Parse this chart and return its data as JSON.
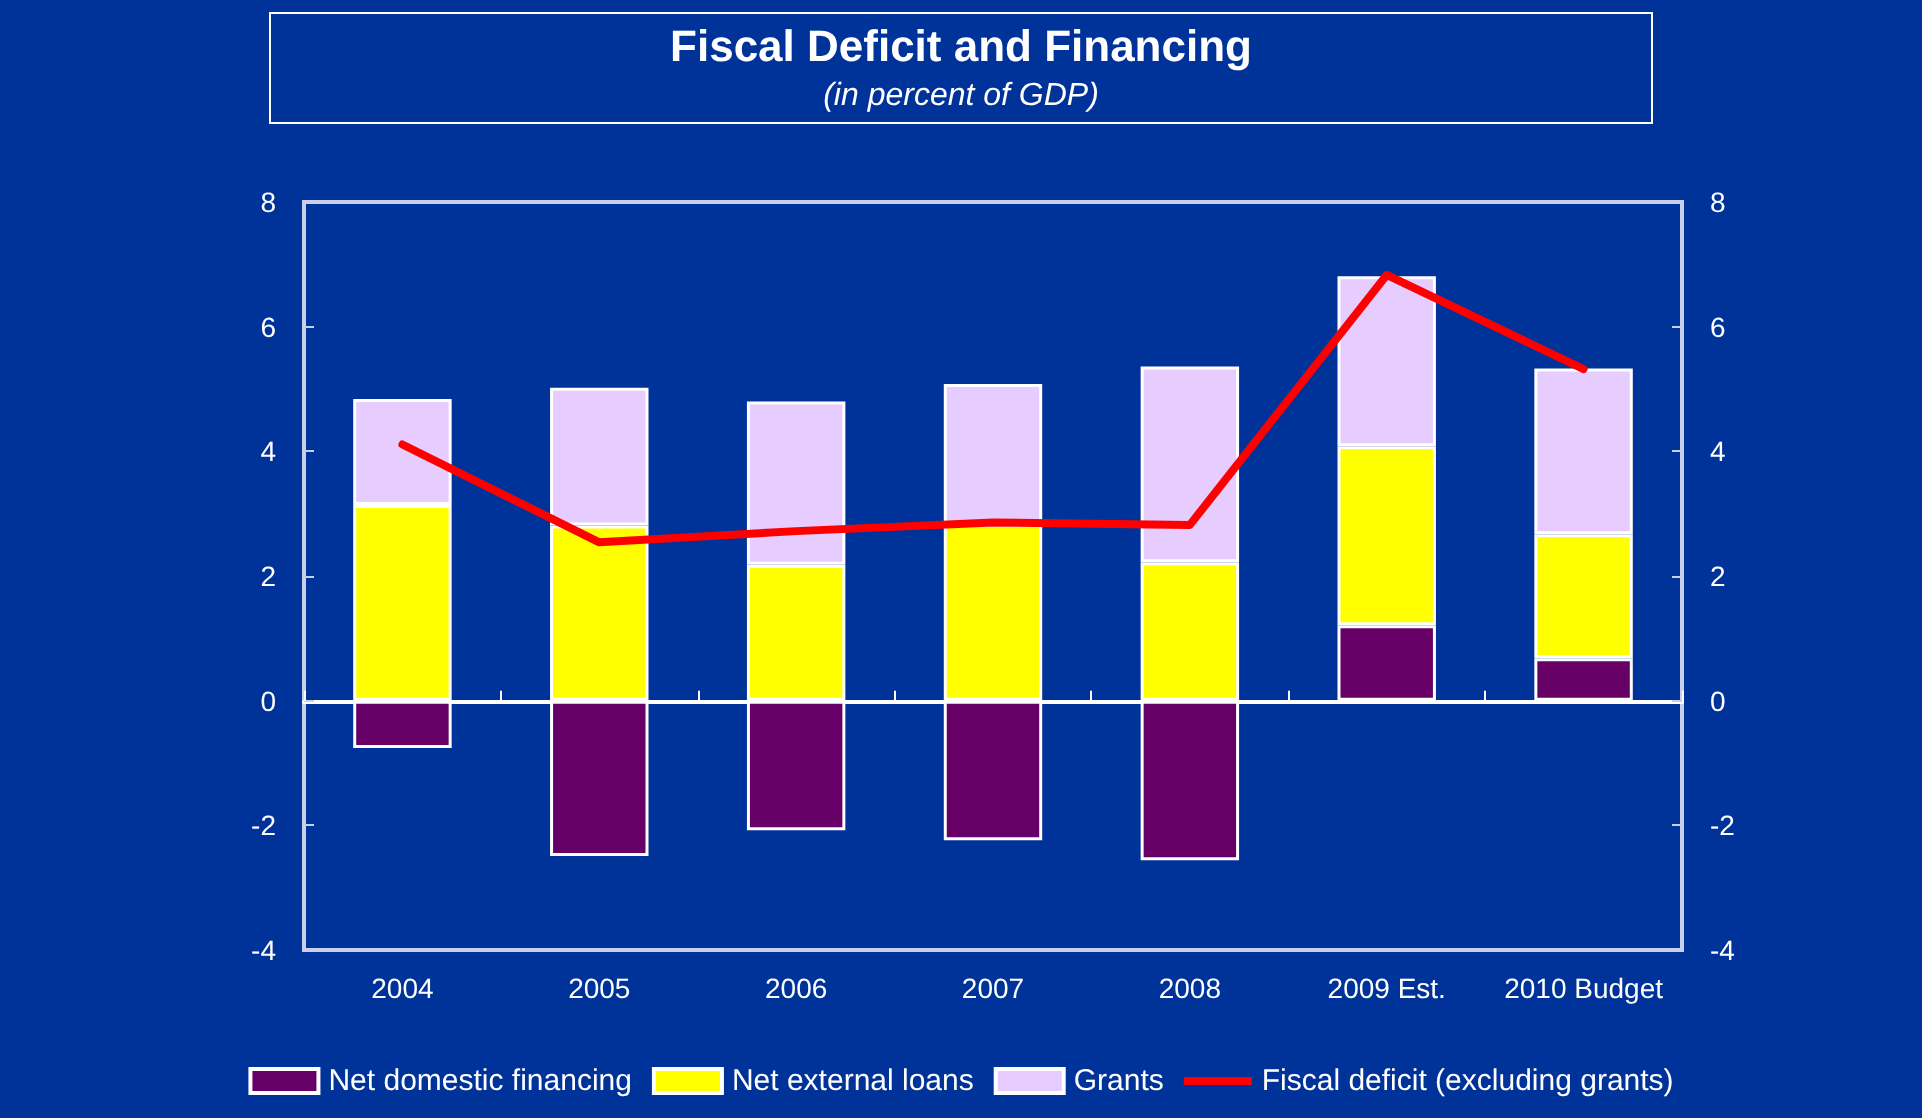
{
  "chart_data": {
    "type": "bar",
    "title": "Fiscal Deficit and Financing",
    "subtitle": "(in percent of GDP)",
    "categories": [
      "2004",
      "2005",
      "2006",
      "2007",
      "2008",
      "2009 Est.",
      "2010 Budget"
    ],
    "stacked": true,
    "series": [
      {
        "name": "Net domestic financing",
        "color": "#660066",
        "values": [
          -0.76,
          -2.49,
          -2.08,
          -2.24,
          -2.56,
          1.21,
          0.68
        ]
      },
      {
        "name": "Net external loans",
        "color": "#ffff00",
        "values": [
          3.14,
          2.81,
          2.18,
          2.83,
          2.22,
          2.87,
          1.99
        ]
      },
      {
        "name": "Grants",
        "color": "#e6ccff",
        "values": [
          1.7,
          2.21,
          2.62,
          2.25,
          3.14,
          2.73,
          2.66
        ]
      },
      {
        "name": "Fiscal deficit (excluding grants)",
        "type": "line",
        "color": "#ff0000",
        "values": [
          4.11,
          2.54,
          2.72,
          2.86,
          2.82,
          6.83,
          5.32
        ]
      }
    ],
    "ylim": [
      -4,
      8
    ],
    "yticks": [
      -4,
      -2,
      0,
      2,
      4,
      6,
      8
    ],
    "y2lim": [
      -4,
      8
    ],
    "y2ticks": [
      -4,
      -2,
      0,
      2,
      4,
      6,
      8
    ],
    "legend": "bottom",
    "marker": "none",
    "line_style": "solid"
  }
}
